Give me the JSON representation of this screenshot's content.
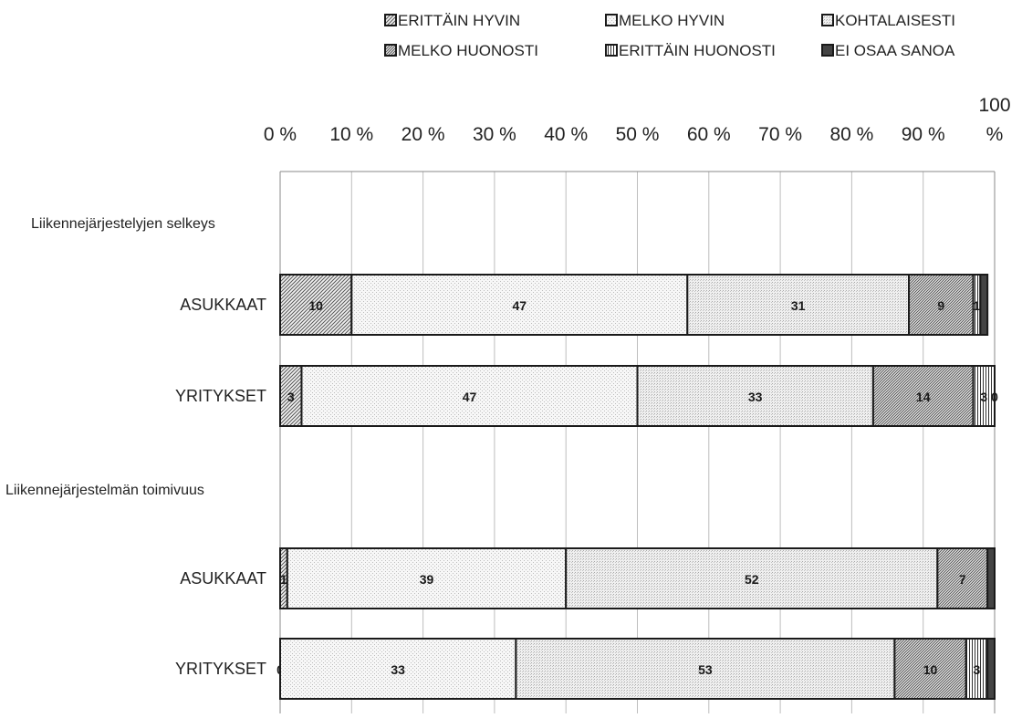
{
  "chart_data": {
    "type": "bar",
    "orientation": "horizontal",
    "stacked": true,
    "xlim": [
      0,
      100
    ],
    "x_ticks": [
      {
        "value": 0,
        "lines": [
          "0 %"
        ]
      },
      {
        "value": 10,
        "lines": [
          "10 %"
        ]
      },
      {
        "value": 20,
        "lines": [
          "20 %"
        ]
      },
      {
        "value": 30,
        "lines": [
          "30 %"
        ]
      },
      {
        "value": 40,
        "lines": [
          "40 %"
        ]
      },
      {
        "value": 50,
        "lines": [
          "50 %"
        ]
      },
      {
        "value": 60,
        "lines": [
          "60 %"
        ]
      },
      {
        "value": 70,
        "lines": [
          "70 %"
        ]
      },
      {
        "value": 80,
        "lines": [
          "80 %"
        ]
      },
      {
        "value": 90,
        "lines": [
          "90 %"
        ]
      },
      {
        "value": 100,
        "lines": [
          "100",
          "%"
        ]
      }
    ],
    "grid": true,
    "legend_position": "top",
    "categories": [
      "Liikennejärjestelyjen selkeys",
      "ASUKKAAT",
      "YRITYKSET",
      "Liikennejärjestelmän toimivuus",
      "ASUKKAAT",
      "YRITYKSET"
    ],
    "series": [
      {
        "name": "ERITTÄIN HYVIN",
        "values": [
          null,
          10,
          3,
          null,
          1,
          0
        ],
        "pattern": "diag-dense"
      },
      {
        "name": "MELKO HYVIN",
        "values": [
          null,
          47,
          47,
          null,
          39,
          33
        ],
        "pattern": "stipple-light"
      },
      {
        "name": "KOHTALAISESTI",
        "values": [
          null,
          31,
          33,
          null,
          52,
          53
        ],
        "pattern": "stipple-med"
      },
      {
        "name": "MELKO HUONOSTI",
        "values": [
          null,
          9,
          14,
          null,
          7,
          10
        ],
        "pattern": "diag-other"
      },
      {
        "name": "ERITTÄIN HUONOSTI",
        "values": [
          null,
          1,
          3,
          null,
          0,
          3
        ],
        "pattern": "vertical"
      },
      {
        "name": "EI OSAA SANOA",
        "values": [
          null,
          1,
          0,
          null,
          1,
          1
        ],
        "pattern": "solid-dark"
      }
    ],
    "data_labels": [
      [
        null,
        "10",
        "3",
        null,
        "1",
        "0"
      ],
      [
        null,
        "47",
        "47",
        null,
        "39",
        "33"
      ],
      [
        null,
        "31",
        "33",
        null,
        "52",
        "53"
      ],
      [
        null,
        "9",
        "14",
        null,
        "7",
        "10"
      ],
      [
        null,
        "1",
        "3",
        null,
        "",
        "3"
      ],
      [
        null,
        "",
        "0",
        null,
        "",
        ""
      ]
    ]
  },
  "colors": {
    "bar_border": "#1a1a1a",
    "grid": "#bdbdbd",
    "text": "#222222",
    "pattern_ink": "#555555"
  }
}
